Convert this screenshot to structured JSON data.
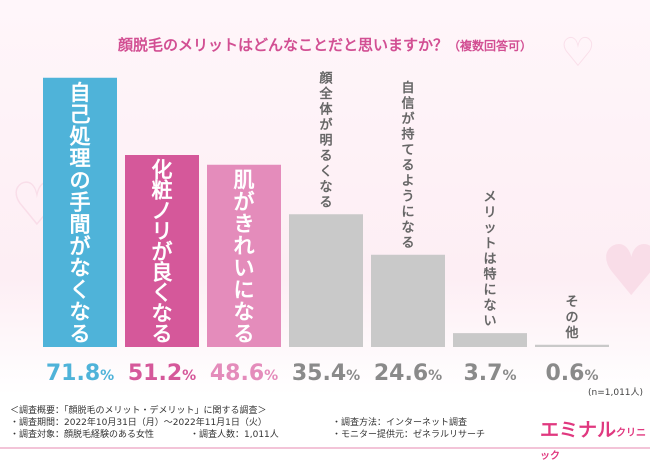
{
  "chart_data": {
    "type": "bar",
    "title": "顔脱毛のメリットはどんなことだと思いますか？",
    "subtitle": "（複数回答可）",
    "categories": [
      "自己処理の手間がなくなる",
      "化粧ノリが良くなる",
      "肌がきれいになる",
      "顔全体が明るくなる",
      "自信が持てるようになる",
      "メリットは特にない",
      "その他"
    ],
    "values": [
      71.8,
      51.2,
      48.6,
      35.4,
      24.6,
      3.7,
      0.6
    ],
    "value_labels": [
      "71.8%",
      "51.2%",
      "48.6%",
      "35.4%",
      "24.6%",
      "3.7%",
      "0.6%"
    ],
    "colors": [
      "#4fb3d9",
      "#d5589a",
      "#e48cbb",
      "#c9c9c9",
      "#c9c9c9",
      "#c9c9c9",
      "#c9c9c9"
    ],
    "label_colors": [
      "#4fb3d9",
      "#d5589a",
      "#e48cbb",
      "#8a8a8a",
      "#8a8a8a",
      "#8a8a8a",
      "#8a8a8a"
    ],
    "ylim": [
      0,
      75
    ],
    "grid": false
  },
  "sample_note": "(n=1,011人)",
  "footer": {
    "heading": "＜調査概要：「顔脱毛のメリット・デメリット」に関する調査＞",
    "period": "・調査期間：2022年10月31日（月）〜2022年11月1日（火）",
    "target": "・調査対象：顔脱毛経験のある女性",
    "count": "・調査人数：1,011人",
    "method": "・調査方法：インターネット調査",
    "provider": "・モニター提供元：ゼネラルリサーチ"
  },
  "logo": {
    "main": "エミナル",
    "sub": "クリニック"
  }
}
